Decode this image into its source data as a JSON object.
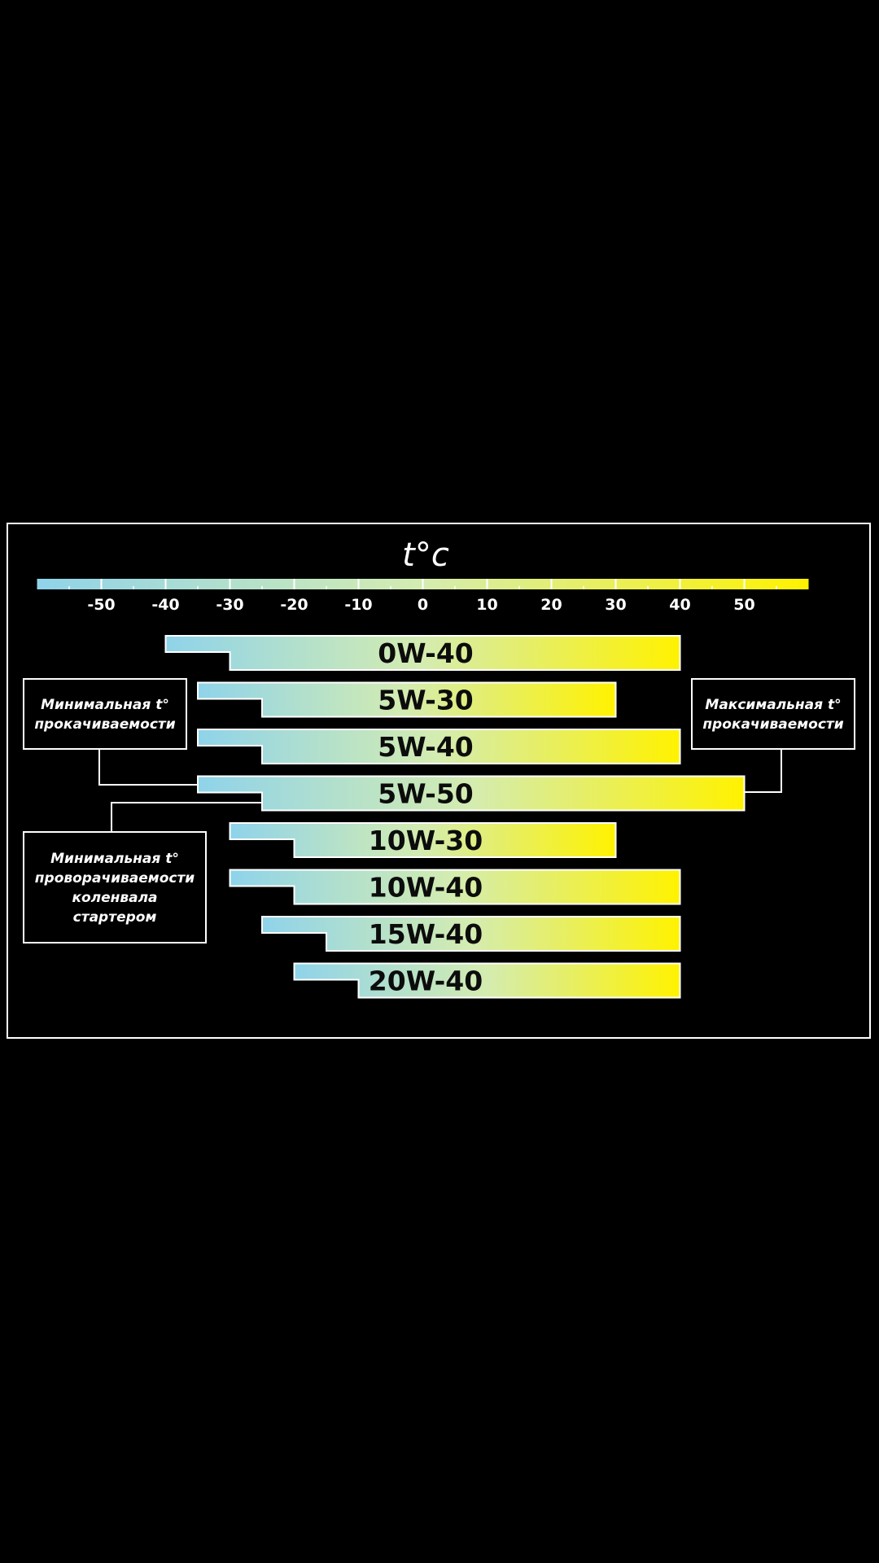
{
  "chart_data": {
    "type": "bar",
    "title": "t°c",
    "xlabel": "",
    "ylabel": "",
    "xlim": [
      -60,
      60
    ],
    "scale_labels": [
      "-50",
      "-40",
      "-30",
      "-20",
      "-10",
      "0",
      "10",
      "20",
      "30",
      "40",
      "50"
    ],
    "scale_values": [
      -50,
      -40,
      -30,
      -20,
      -10,
      0,
      10,
      20,
      30,
      40,
      50
    ],
    "categories": [
      "0W-40",
      "5W-30",
      "5W-40",
      "5W-50",
      "10W-30",
      "10W-40",
      "15W-40",
      "20W-40"
    ],
    "series": [
      {
        "name": "Минимальная t° прокачиваемости",
        "values": [
          -40,
          -35,
          -35,
          -35,
          -30,
          -30,
          -25,
          -20
        ]
      },
      {
        "name": "Минимальная t° проворачиваемости коленвала стартером",
        "values": [
          -30,
          -25,
          -25,
          -25,
          -20,
          -20,
          -15,
          -10
        ]
      },
      {
        "name": "Максимальная t° прокачиваемости",
        "values": [
          40,
          30,
          40,
          50,
          30,
          40,
          40,
          40
        ]
      }
    ],
    "colors": {
      "cold": "#8fd3ea",
      "hot": "#fff200",
      "zero": "#d42a20",
      "frame": "#ffffff",
      "background": "#000000"
    },
    "grid": false,
    "legend": "callouts"
  },
  "callouts": {
    "min_pump": [
      "Минимальная t°",
      "прокачиваемости"
    ],
    "max_pump": [
      "Максимальная t°",
      "прокачиваемости"
    ],
    "min_crank": [
      "Минимальная t°",
      "проворачиваемости",
      "коленвала",
      "стартером"
    ]
  }
}
